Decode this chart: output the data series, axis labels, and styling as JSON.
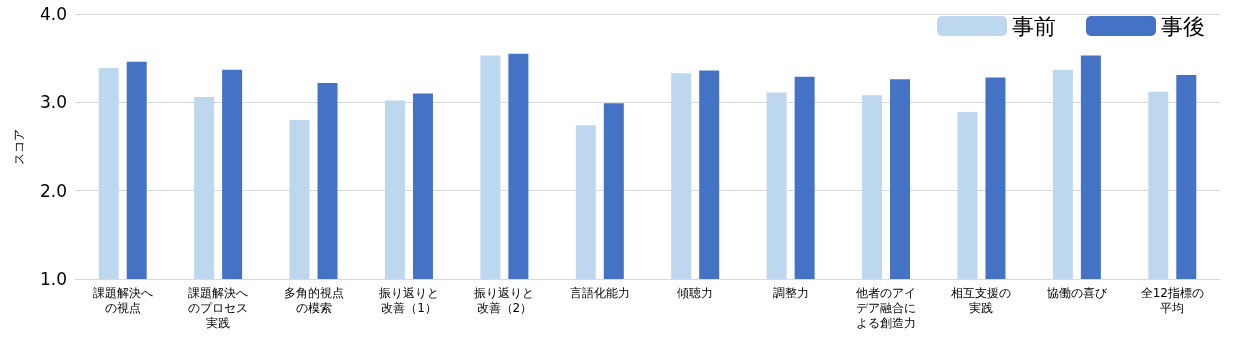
{
  "chart_data": {
    "type": "bar",
    "ylabel": "スコア",
    "categories": [
      "課題解決への視点",
      "課題解決へのプロセス実践",
      "多角的視点の模索",
      "振り返りと改善（1）",
      "振り返りと改善（2）",
      "言語化能力",
      "傾聴力",
      "調整力",
      "他者のアイデア融合による創造力",
      "相互支援の実践",
      "協働の喜び",
      "全12指標の平均"
    ],
    "series": [
      {
        "name": "事前",
        "color": "#bdd7ee",
        "values": [
          3.39,
          3.06,
          2.8,
          3.02,
          3.53,
          2.74,
          3.33,
          3.11,
          3.08,
          2.89,
          3.37,
          3.12
        ]
      },
      {
        "name": "事後",
        "color": "#4472c4",
        "values": [
          3.46,
          3.37,
          3.22,
          3.1,
          3.55,
          2.99,
          3.36,
          3.29,
          3.26,
          3.28,
          3.53,
          3.31
        ]
      }
    ],
    "ylim": [
      1,
      4
    ],
    "yticks": [
      {
        "value": 1,
        "label": "1.0"
      },
      {
        "value": 2,
        "label": "2.0"
      },
      {
        "value": 3,
        "label": "3.0"
      },
      {
        "value": 4,
        "label": "4.0"
      }
    ],
    "grid": "y",
    "legend": "top right"
  }
}
